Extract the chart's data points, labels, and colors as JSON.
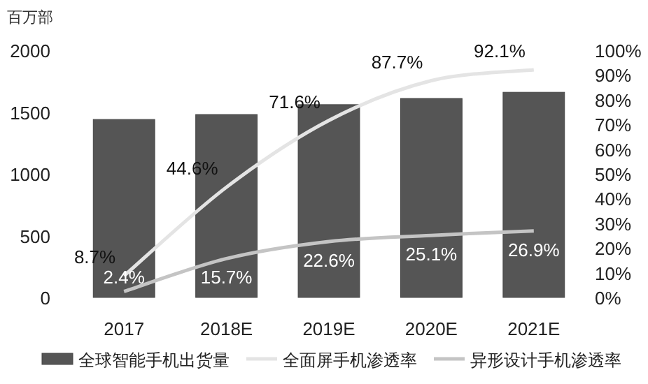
{
  "chart_data": {
    "type": "bar",
    "ylabel": "百万部",
    "categories": [
      "2017",
      "2018E",
      "2019E",
      "2020E",
      "2021E"
    ],
    "ylim": [
      0,
      2000
    ],
    "yticks": [
      0,
      500,
      1000,
      1500,
      2000
    ],
    "y2lim": [
      0,
      100
    ],
    "y2ticks": [
      {
        "value": 0,
        "label": "0%"
      },
      {
        "value": 10,
        "label": "10%"
      },
      {
        "value": 20,
        "label": "20%"
      },
      {
        "value": 30,
        "label": "30%"
      },
      {
        "value": 40,
        "label": "40%"
      },
      {
        "value": 50,
        "label": "50%"
      },
      {
        "value": 60,
        "label": "60%"
      },
      {
        "value": 70,
        "label": "70%"
      },
      {
        "value": 80,
        "label": "80%"
      },
      {
        "value": 90,
        "label": "90%"
      },
      {
        "value": 100,
        "label": "100%"
      }
    ],
    "legend": "bottom",
    "grid": false,
    "series": [
      {
        "name": "全球智能手机出货量",
        "color": "#555555",
        "values": [
          1440,
          1480,
          1560,
          1610,
          1660
        ]
      },
      {
        "name": "全面屏手机渗透率",
        "type": "line",
        "axis": "y2",
        "color": "#e4e4e4",
        "values": [
          8.7,
          44.6,
          71.6,
          87.7,
          92.1
        ],
        "value_labels": [
          "8.7%",
          "44.6%",
          "71.6%",
          "87.7%",
          "92.1%"
        ]
      },
      {
        "name": "异形设计手机渗透率",
        "type": "line",
        "axis": "y2",
        "color": "#c4c4c4",
        "values": [
          2.4,
          15.7,
          22.6,
          25.1,
          26.9
        ],
        "value_labels": [
          "2.4%",
          "15.7%",
          "22.6%",
          "25.1%",
          "26.9%"
        ]
      }
    ]
  }
}
